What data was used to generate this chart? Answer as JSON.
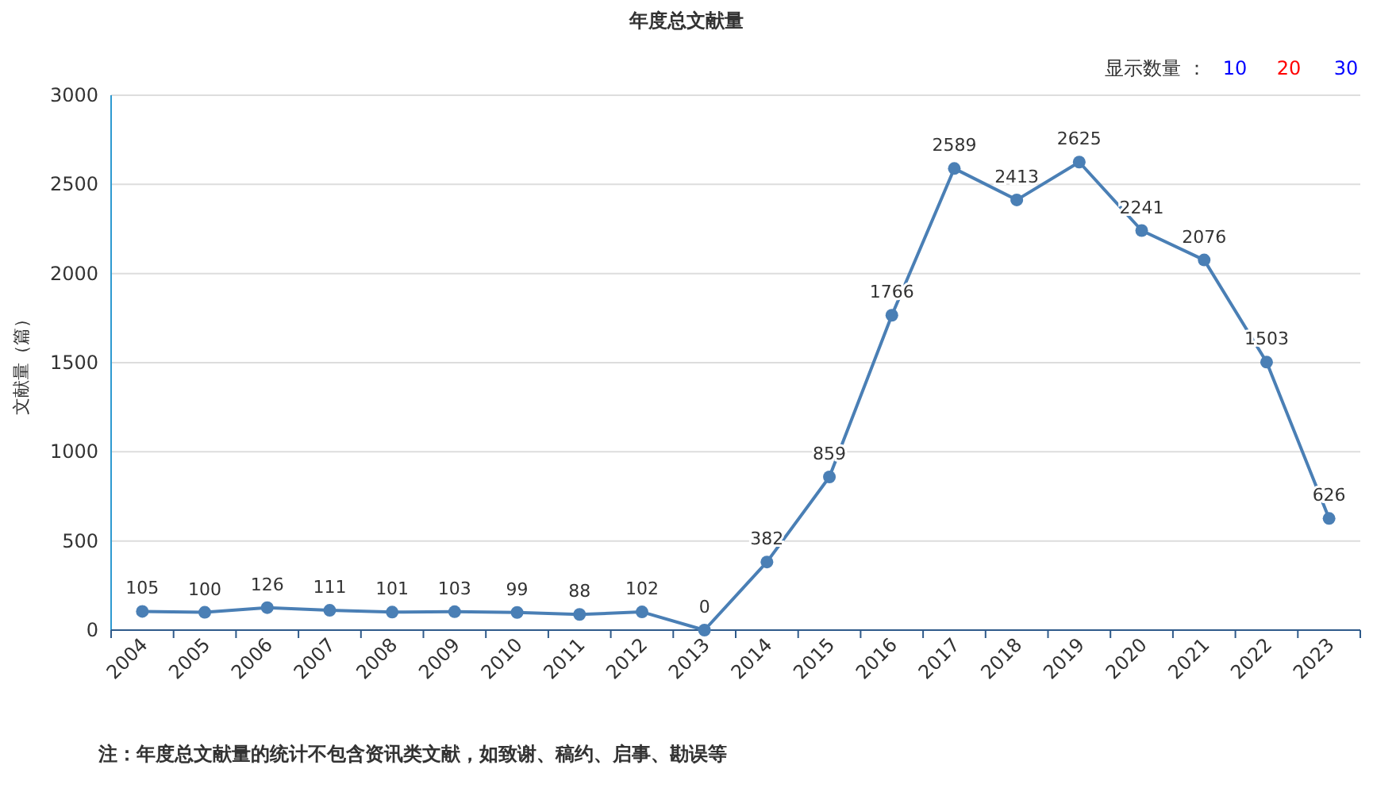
{
  "chart_data": {
    "type": "line",
    "title": "年度总文献量",
    "ylabel": "文献量（篇）",
    "categories": [
      "2004",
      "2005",
      "2006",
      "2007",
      "2008",
      "2009",
      "2010",
      "2011",
      "2012",
      "2013",
      "2014",
      "2015",
      "2016",
      "2017",
      "2018",
      "2019",
      "2020",
      "2021",
      "2022",
      "2023"
    ],
    "series": [
      {
        "color": "#4a7fb5",
        "values": [
          105,
          100,
          126,
          111,
          101,
          103,
          99,
          88,
          102,
          0,
          382,
          859,
          1766,
          2589,
          2413,
          2625,
          2241,
          2076,
          1503,
          626
        ]
      }
    ],
    "ylim": [
      0,
      3000
    ],
    "yticks": [
      0,
      500,
      1000,
      1500,
      2000,
      2500,
      3000
    ],
    "grid": "y",
    "marker": "circle",
    "line_style": "solid",
    "data_labels": true,
    "annotations": [
      "显示数量 ：",
      "10",
      "20",
      "30",
      "注：年度总文献量的统计不包含资讯类文献，如致谢、稿约、启事、勘误等"
    ]
  }
}
